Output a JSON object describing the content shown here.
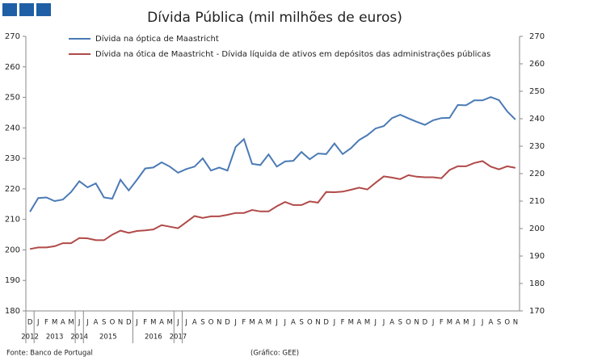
{
  "chart_data": {
    "type": "line",
    "title": "Dívida Pública (mil milhões de euros)",
    "categories": [
      "D",
      "J",
      "F",
      "M",
      "A",
      "M",
      "J",
      "J",
      "A",
      "S",
      "O",
      "N",
      "D",
      "J",
      "F",
      "M",
      "A",
      "M",
      "J",
      "J",
      "A",
      "S",
      "O",
      "N",
      "D",
      "J",
      "F",
      "M",
      "A",
      "M",
      "J",
      "J",
      "A",
      "S",
      "O",
      "N",
      "D",
      "J",
      "F",
      "M",
      "A",
      "M",
      "J",
      "J",
      "A",
      "S",
      "O",
      "N",
      "D",
      "J",
      "F",
      "M",
      "A",
      "M",
      "J",
      "J",
      "A",
      "S",
      "O",
      "N"
    ],
    "years": [
      "2012",
      "2013",
      "2014",
      "2015",
      "2016",
      "2017"
    ],
    "series": [
      {
        "name": "Dívida na óptica de Maastricht",
        "color": "#4a7ab5",
        "values": [
          212.5,
          217,
          217.2,
          216,
          216.5,
          219,
          222.5,
          220.5,
          221.8,
          217.2,
          216.8,
          223,
          219.5,
          223,
          226.7,
          227,
          228.7,
          227.3,
          225.3,
          226.5,
          227.3,
          230,
          226,
          227,
          226,
          233.8,
          236.3,
          228.2,
          227.8,
          231.3,
          227.3,
          229,
          229.2,
          232.1,
          229.7,
          231.6,
          231.4,
          234.9,
          231.4,
          233.3,
          236,
          237.6,
          239.8,
          240.6,
          243.2,
          244.3,
          243.1,
          242,
          241,
          242.5,
          243.2,
          243.3,
          247.5,
          247.4,
          249,
          249,
          250.1,
          249.1,
          245.4,
          242.7
        ]
      },
      {
        "name": "Dívida na ótica de Maastricht - Dívida líquida de ativos em depósitos das administrações públicas",
        "color": "#b04a48",
        "values": [
          200.3,
          200.8,
          200.8,
          201.2,
          202.2,
          202.2,
          203.9,
          203.8,
          203.2,
          203.2,
          205,
          206.3,
          205.6,
          206.2,
          206.4,
          206.7,
          208.1,
          207.6,
          207.1,
          209.1,
          211.1,
          210.5,
          211,
          211,
          211.5,
          212.1,
          212.1,
          213.1,
          212.6,
          212.6,
          214.3,
          215.7,
          214.7,
          214.7,
          215.9,
          215.5,
          219,
          218.9,
          219.1,
          219.7,
          220.4,
          219.8,
          222,
          224.1,
          223.7,
          223.2,
          224.5,
          224,
          223.8,
          223.8,
          223.5,
          226.2,
          227.4,
          227.4,
          228.5,
          229.1,
          227.3,
          226.4,
          227.4,
          226.9
        ]
      }
    ],
    "ylim": [
      180,
      270
    ],
    "yticks": [
      180,
      190,
      200,
      210,
      220,
      230,
      240,
      250,
      260,
      270
    ],
    "y2lim": [
      170,
      270
    ],
    "y2ticks": [
      170,
      180,
      190,
      200,
      210,
      220,
      230,
      240,
      250,
      260,
      270
    ],
    "source": "Fonte: Banco de Portugal",
    "credit": "(Gráfico: GEE)"
  }
}
